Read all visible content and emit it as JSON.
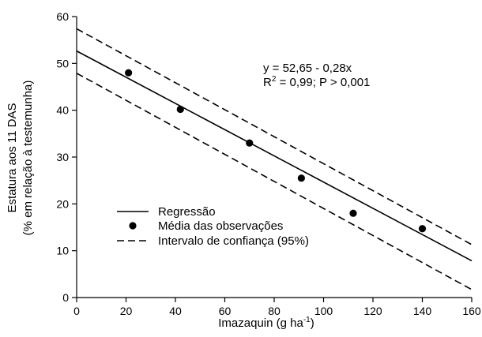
{
  "chart_data": {
    "type": "scatter",
    "xlabel": "Imazaquin (g ha",
    "xlabel_sup": "-1",
    "xlabel_end": ")",
    "ylabel_line1": "Estatura aos 11 DAS",
    "ylabel_line2": "(% em relação à testemunha)",
    "xlim": [
      0,
      160
    ],
    "ylim": [
      0,
      60
    ],
    "xticks": [
      0,
      20,
      40,
      60,
      80,
      100,
      120,
      140,
      160
    ],
    "yticks": [
      0,
      10,
      20,
      30,
      40,
      50,
      60
    ],
    "grid": false,
    "legend_position": "lower-left",
    "series": [
      {
        "name": "Média das observações",
        "kind": "points",
        "x": [
          21,
          42,
          70,
          91,
          112,
          140
        ],
        "y": [
          48,
          40.2,
          33,
          25.5,
          18,
          14.7
        ]
      },
      {
        "name": "Regressão",
        "kind": "line",
        "style": "solid",
        "x": [
          0,
          160
        ],
        "y": [
          52.65,
          7.85
        ]
      },
      {
        "name": "Intervalo de confiança (95%)",
        "kind": "line",
        "style": "dashed",
        "x": [
          0,
          160
        ],
        "y": [
          57.4,
          11.3
        ]
      },
      {
        "name": "",
        "kind": "line",
        "style": "dashed",
        "x": [
          0,
          160
        ],
        "y": [
          47.9,
          1.7
        ]
      }
    ],
    "annotations": {
      "equation": "y = 52,65 - 0,28x",
      "r2_prefix": "R",
      "r2_sup": "2",
      "r2_rest": " = 0,99; P > 0,001"
    }
  }
}
